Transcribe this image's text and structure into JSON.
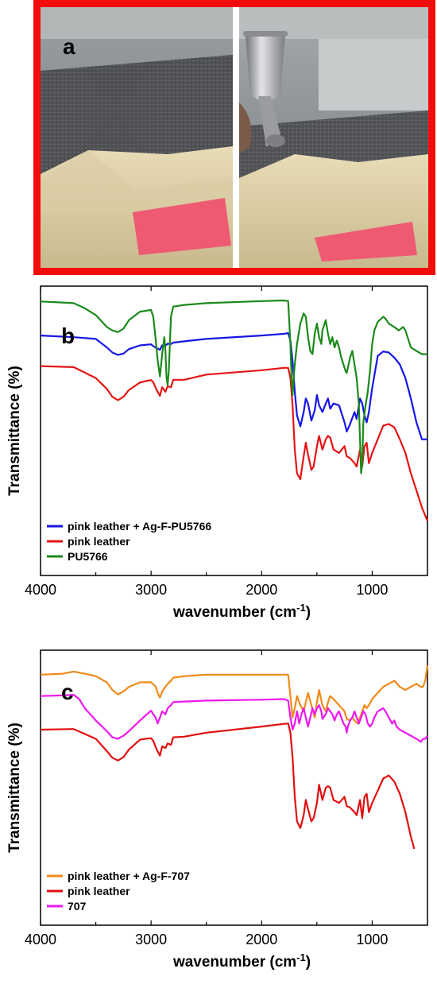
{
  "panel_a": {
    "label": "a"
  },
  "chart_data": [
    {
      "type": "line",
      "panel_label": "b",
      "xlabel": "wavenumber  (cm",
      "xlabel_sup": "-1",
      "xlabel_close": ")",
      "ylabel": "Transmittance (%)",
      "xlim": [
        4000,
        500
      ],
      "x_reversed": true,
      "xticks": [
        4000,
        3000,
        2000,
        1000
      ],
      "yticks_visible": false,
      "legend_position": "bottom-left",
      "legend": [
        "pink leather + Ag-F-PU5766",
        "pink leather",
        "PU5766"
      ],
      "series": [
        {
          "name": "pink leather + Ag-F-PU5766",
          "color": "#1616e6",
          "x": [
            4000,
            3700,
            3500,
            3400,
            3350,
            3300,
            3250,
            3200,
            3100,
            3000,
            2980,
            2950,
            2920,
            2900,
            2870,
            2850,
            2820,
            2800,
            2700,
            2500,
            2000,
            1800,
            1760,
            1740,
            1720,
            1700,
            1680,
            1650,
            1620,
            1600,
            1580,
            1550,
            1520,
            1500,
            1480,
            1450,
            1420,
            1400,
            1380,
            1350,
            1300,
            1250,
            1230,
            1200,
            1160,
            1140,
            1110,
            1090,
            1070,
            1050,
            1030,
            1000,
            950,
            900,
            850,
            800,
            750,
            700,
            650,
            600,
            550,
            500
          ],
          "y": [
            70.5,
            70,
            69.5,
            67,
            65.5,
            64.8,
            65.2,
            66.5,
            67.6,
            67.9,
            67.4,
            66.8,
            66.3,
            67.6,
            67.5,
            68.1,
            68,
            68.4,
            68.8,
            69.5,
            70.5,
            71,
            71.2,
            69,
            63,
            54,
            47,
            43.8,
            48,
            52,
            50.5,
            45.5,
            48.5,
            53,
            50,
            48,
            50.5,
            52,
            49,
            50.5,
            50,
            45,
            42.3,
            44.5,
            48,
            46,
            52,
            50.5,
            47,
            45,
            48,
            55,
            64.5,
            65.8,
            65.5,
            64,
            62,
            58,
            52,
            45,
            40,
            40
          ]
        },
        {
          "name": "pink leather",
          "color": "#e61414",
          "x": [
            4000,
            3700,
            3500,
            3400,
            3350,
            3300,
            3250,
            3200,
            3100,
            3050,
            3000,
            2980,
            2950,
            2920,
            2900,
            2870,
            2850,
            2820,
            2800,
            2700,
            2500,
            2000,
            1800,
            1760,
            1740,
            1720,
            1700,
            1680,
            1650,
            1620,
            1600,
            1580,
            1550,
            1530,
            1500,
            1480,
            1450,
            1420,
            1400,
            1380,
            1350,
            1300,
            1250,
            1230,
            1200,
            1160,
            1140,
            1110,
            1090,
            1070,
            1050,
            1030,
            1000,
            950,
            900,
            850,
            800,
            750,
            700,
            650,
            600,
            550,
            500
          ],
          "y": [
            61.5,
            61.2,
            58,
            54.8,
            52.5,
            51.5,
            52.5,
            54.5,
            56.7,
            57.1,
            57.4,
            56.8,
            54.5,
            52.8,
            55.3,
            54,
            55.6,
            55.3,
            57.5,
            57.5,
            59,
            60.3,
            61,
            61,
            58,
            50,
            37,
            30,
            28.3,
            35,
            39,
            35.5,
            31,
            32,
            38,
            41,
            37,
            40,
            41,
            40.5,
            37,
            36,
            38,
            35,
            34.5,
            33,
            32,
            37,
            32,
            38,
            39,
            33,
            36,
            40,
            44,
            44.5,
            43.5,
            40,
            36,
            30,
            25,
            20,
            16
          ]
        },
        {
          "name": "PU5766",
          "color": "#1b8a1b",
          "x": [
            4000,
            3800,
            3700,
            3600,
            3500,
            3400,
            3350,
            3300,
            3250,
            3200,
            3100,
            3000,
            2980,
            2960,
            2940,
            2920,
            2900,
            2880,
            2870,
            2860,
            2850,
            2840,
            2820,
            2800,
            2700,
            2500,
            2000,
            1800,
            1760,
            1740,
            1730,
            1720,
            1710,
            1700,
            1680,
            1650,
            1620,
            1600,
            1580,
            1560,
            1540,
            1520,
            1500,
            1480,
            1460,
            1450,
            1420,
            1400,
            1380,
            1360,
            1340,
            1320,
            1300,
            1280,
            1260,
            1240,
            1230,
            1220,
            1200,
            1180,
            1160,
            1140,
            1120,
            1110,
            1100,
            1090,
            1080,
            1060,
            1040,
            1020,
            1000,
            980,
            950,
            900,
            880,
            850,
            800,
            760,
            720,
            700,
            680,
            650,
            600,
            550,
            500
          ],
          "y": [
            80.5,
            80.2,
            80,
            78.5,
            76.5,
            73,
            72,
            71.5,
            72.5,
            75,
            77.5,
            78,
            76,
            70,
            63,
            58.5,
            65,
            70,
            66,
            58,
            56,
            60,
            76,
            79,
            79.5,
            80,
            80.6,
            80.8,
            80.6,
            68,
            58,
            53,
            58,
            62,
            68,
            74,
            77,
            76,
            70,
            66,
            65,
            71,
            74,
            70,
            68,
            72,
            75,
            71,
            68,
            70,
            67,
            69,
            67,
            64,
            62,
            60,
            59.5,
            61,
            64,
            66,
            62,
            58,
            50,
            40,
            30,
            33,
            45,
            50,
            54,
            60,
            68,
            72,
            74.5,
            76,
            75.5,
            74,
            73,
            72,
            73,
            72,
            70,
            67,
            66,
            65,
            65
          ]
        }
      ]
    },
    {
      "type": "line",
      "panel_label": "c",
      "xlabel": "wavenumber  (cm",
      "xlabel_sup": "-1",
      "xlabel_close": ")",
      "ylabel": "Transmittance (%)",
      "xlim": [
        4000,
        500
      ],
      "x_reversed": true,
      "xticks": [
        4000,
        3000,
        2000,
        1000
      ],
      "yticks_visible": false,
      "legend_position": "bottom-left",
      "legend": [
        "pink leather + Ag-F-707",
        "pink leather",
        "707"
      ],
      "series": [
        {
          "name": "pink leather + Ag-F-707",
          "color": "#f08a1a",
          "x": [
            4000,
            3800,
            3700,
            3600,
            3500,
            3400,
            3350,
            3300,
            3250,
            3200,
            3100,
            3000,
            2960,
            2940,
            2920,
            2900,
            2870,
            2850,
            2820,
            2800,
            2700,
            2500,
            2000,
            1800,
            1760,
            1740,
            1720,
            1700,
            1680,
            1650,
            1620,
            1600,
            1580,
            1550,
            1520,
            1500,
            1480,
            1450,
            1420,
            1400,
            1380,
            1350,
            1300,
            1250,
            1230,
            1200,
            1180,
            1150,
            1130,
            1110,
            1090,
            1070,
            1050,
            1030,
            1000,
            950,
            900,
            850,
            800,
            750,
            700,
            650,
            600,
            560,
            540,
            520,
            500
          ],
          "y": [
            82,
            82.3,
            83,
            82.3,
            81.5,
            79.5,
            77,
            75.5,
            76.5,
            78,
            79.5,
            79.5,
            78.2,
            76,
            74.5,
            76.5,
            78,
            79,
            80,
            81,
            81.5,
            82,
            82,
            82,
            82,
            75,
            68,
            71,
            75,
            72,
            70,
            73,
            76,
            72,
            68,
            73,
            77,
            72,
            70,
            73,
            75,
            74,
            72,
            70,
            67.5,
            67,
            68,
            66.5,
            66,
            68,
            70,
            72,
            71,
            72,
            74,
            76,
            78,
            79,
            80,
            78,
            77,
            78,
            79,
            78,
            78,
            80,
            85
          ]
        },
        {
          "name": "pink leather",
          "color": "#e01010",
          "x": [
            4000,
            3700,
            3500,
            3400,
            3350,
            3300,
            3250,
            3200,
            3100,
            3050,
            3000,
            2980,
            2950,
            2920,
            2900,
            2870,
            2850,
            2820,
            2800,
            2700,
            2500,
            2000,
            1800,
            1760,
            1740,
            1720,
            1700,
            1680,
            1650,
            1620,
            1600,
            1580,
            1550,
            1530,
            1500,
            1480,
            1450,
            1420,
            1400,
            1380,
            1350,
            1300,
            1250,
            1230,
            1200,
            1160,
            1140,
            1110,
            1090,
            1070,
            1050,
            1030,
            1000,
            950,
            900,
            850,
            800,
            750,
            700,
            650,
            620
          ],
          "y": [
            64,
            64.2,
            61,
            57,
            54.8,
            53.9,
            55,
            57.5,
            60.7,
            61,
            61.2,
            60.3,
            57.6,
            55.5,
            58.5,
            58,
            59.5,
            59,
            61.5,
            61.7,
            63,
            65,
            65.9,
            66,
            63,
            55,
            42,
            34,
            31.8,
            36,
            41,
            38,
            34,
            35,
            40,
            46,
            41,
            45,
            45.5,
            45,
            41,
            40,
            42,
            39,
            38.5,
            37,
            36,
            41,
            35,
            42,
            43,
            37,
            40,
            44,
            48,
            49,
            47,
            43,
            37,
            29,
            25
          ]
        },
        {
          "name": "707",
          "color": "#ee18ee",
          "x": [
            4000,
            3800,
            3700,
            3650,
            3600,
            3500,
            3400,
            3350,
            3300,
            3250,
            3200,
            3100,
            3000,
            2980,
            2960,
            2940,
            2920,
            2900,
            2870,
            2850,
            2820,
            2800,
            2700,
            2500,
            2000,
            1800,
            1760,
            1740,
            1720,
            1700,
            1680,
            1660,
            1640,
            1620,
            1600,
            1580,
            1560,
            1540,
            1520,
            1500,
            1480,
            1460,
            1450,
            1420,
            1400,
            1380,
            1360,
            1340,
            1320,
            1300,
            1280,
            1260,
            1240,
            1230,
            1220,
            1200,
            1180,
            1160,
            1140,
            1120,
            1100,
            1080,
            1060,
            1040,
            1020,
            1000,
            980,
            950,
            900,
            880,
            850,
            820,
            800,
            780,
            750,
            700,
            650,
            600,
            560,
            540,
            520,
            500
          ],
          "y": [
            75,
            75.2,
            75.4,
            74,
            71,
            67,
            63.5,
            61.5,
            61,
            62,
            63.5,
            67,
            70.2,
            69,
            68,
            66,
            68,
            70,
            69,
            71,
            72,
            73,
            73.2,
            73.5,
            73.8,
            74,
            73.5,
            68,
            64,
            66,
            70,
            66,
            69,
            71,
            68,
            65,
            68,
            71,
            69,
            71,
            72,
            70,
            67.5,
            69,
            71,
            70,
            69,
            67,
            69,
            70,
            68,
            66,
            65,
            63,
            65,
            67,
            68,
            70,
            68,
            66,
            68,
            70,
            69,
            66,
            65,
            66,
            68,
            70,
            71,
            70,
            68,
            66,
            67,
            65,
            64,
            63,
            62,
            61,
            60,
            61,
            61,
            62
          ]
        }
      ]
    }
  ]
}
